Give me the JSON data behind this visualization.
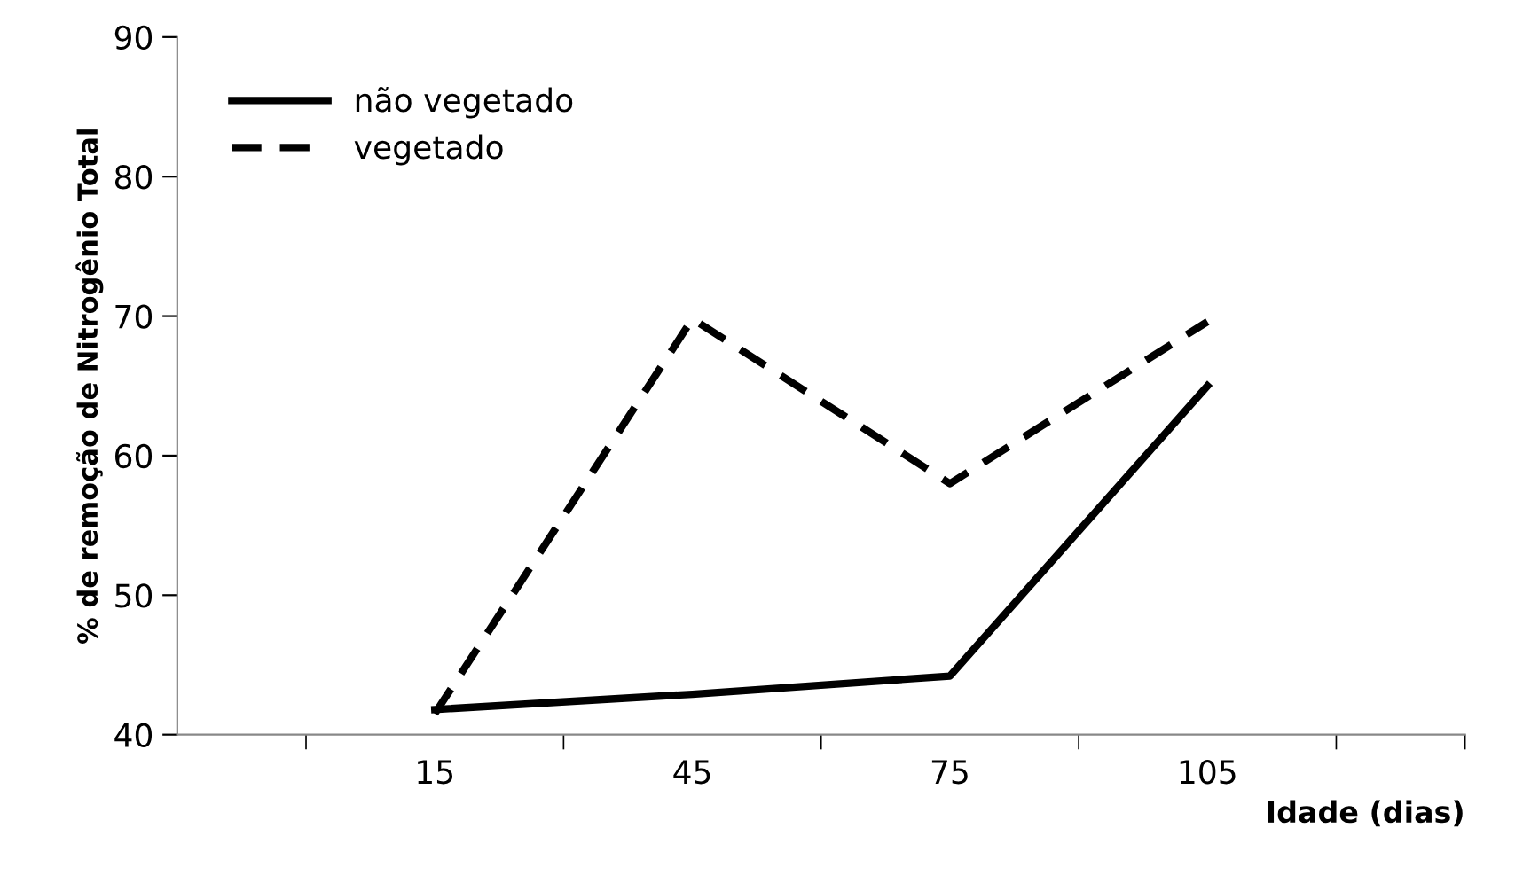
{
  "chart_data": {
    "type": "line",
    "categories": [
      "15",
      "45",
      "75",
      "105"
    ],
    "series": [
      {
        "name": "não vegetado",
        "color": "#000000",
        "line_style": "solid",
        "values": [
          41.8,
          42.9,
          44.2,
          65.0
        ]
      },
      {
        "name": "vegetado",
        "color": "#000000",
        "line_style": "dashed",
        "values": [
          41.5,
          69.8,
          58.0,
          69.6
        ]
      }
    ],
    "xlabel": "Idade (dias)",
    "ylabel": "% de remoção de Nitrogênio Total",
    "ylim": [
      40,
      90
    ],
    "yticks": [
      40,
      50,
      60,
      70,
      80,
      90
    ],
    "grid": false,
    "legend": "top left",
    "marker": "none"
  }
}
